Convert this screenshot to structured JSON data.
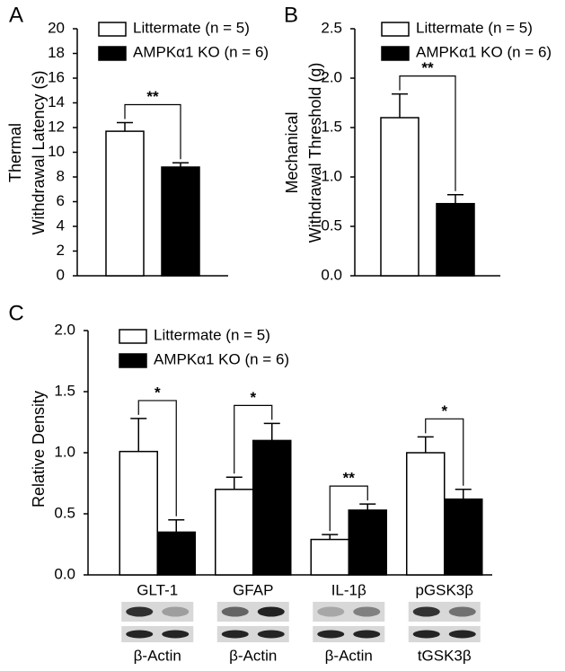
{
  "chart_data": [
    {
      "type": "bar",
      "panel": "A",
      "ylabel": [
        "Thermal",
        "Withdrawal Latency (s)"
      ],
      "categories": [
        null
      ],
      "series": [
        {
          "name": "Littermate (n = 5)",
          "color": "#ffffff",
          "values": [
            11.7
          ],
          "errors": [
            0.7
          ]
        },
        {
          "name": "AMPKα1 KO (n = 6)",
          "color": "#000000",
          "values": [
            8.8
          ],
          "errors": [
            0.35
          ]
        }
      ],
      "significance": [
        "**"
      ],
      "ylim": [
        0,
        20
      ],
      "yticks": [
        0,
        2,
        4,
        6,
        8,
        10,
        12,
        14,
        16,
        18,
        20
      ]
    },
    {
      "type": "bar",
      "panel": "B",
      "ylabel": [
        "Mechanical",
        "Withdrawal Threshold (g)"
      ],
      "categories": [
        null
      ],
      "series": [
        {
          "name": "Littermate (n = 5)",
          "color": "#ffffff",
          "values": [
            1.6
          ],
          "errors": [
            0.24
          ]
        },
        {
          "name": "AMPKα1 KO (n = 6)",
          "color": "#000000",
          "values": [
            0.73
          ],
          "errors": [
            0.09
          ]
        }
      ],
      "significance": [
        "**"
      ],
      "ylim": [
        0,
        2.5
      ],
      "yticks": [
        {
          "value": 0,
          "label": "0.0"
        },
        0.5,
        {
          "value": 1,
          "label": "1.0"
        },
        1.5,
        {
          "value": 2,
          "label": "2.0"
        },
        2.5
      ]
    },
    {
      "type": "bar",
      "panel": "C",
      "ylabel": [
        "Relative Density"
      ],
      "categories": [
        "GLT-1",
        "GFAP",
        "IL-1β",
        "pGSK3β"
      ],
      "loading_controls": [
        "β-Actin",
        "β-Actin",
        "β-Actin",
        "tGSK3β"
      ],
      "series": [
        {
          "name": "Littermate (n = 5)",
          "color": "#ffffff",
          "values": [
            1.01,
            0.7,
            0.29,
            1.0
          ],
          "errors": [
            0.27,
            0.1,
            0.04,
            0.13
          ]
        },
        {
          "name": "AMPKα1 KO (n = 6)",
          "color": "#000000",
          "values": [
            0.35,
            1.1,
            0.53,
            0.62
          ],
          "errors": [
            0.1,
            0.14,
            0.05,
            0.08
          ]
        }
      ],
      "significance": [
        "*",
        "*",
        "**",
        "*"
      ],
      "ylim": [
        0,
        2
      ],
      "yticks": [
        {
          "value": 0,
          "label": "0.0"
        },
        0.5,
        {
          "value": 1,
          "label": "1.0"
        },
        1.5,
        {
          "value": 2,
          "label": "2.0"
        }
      ]
    }
  ]
}
